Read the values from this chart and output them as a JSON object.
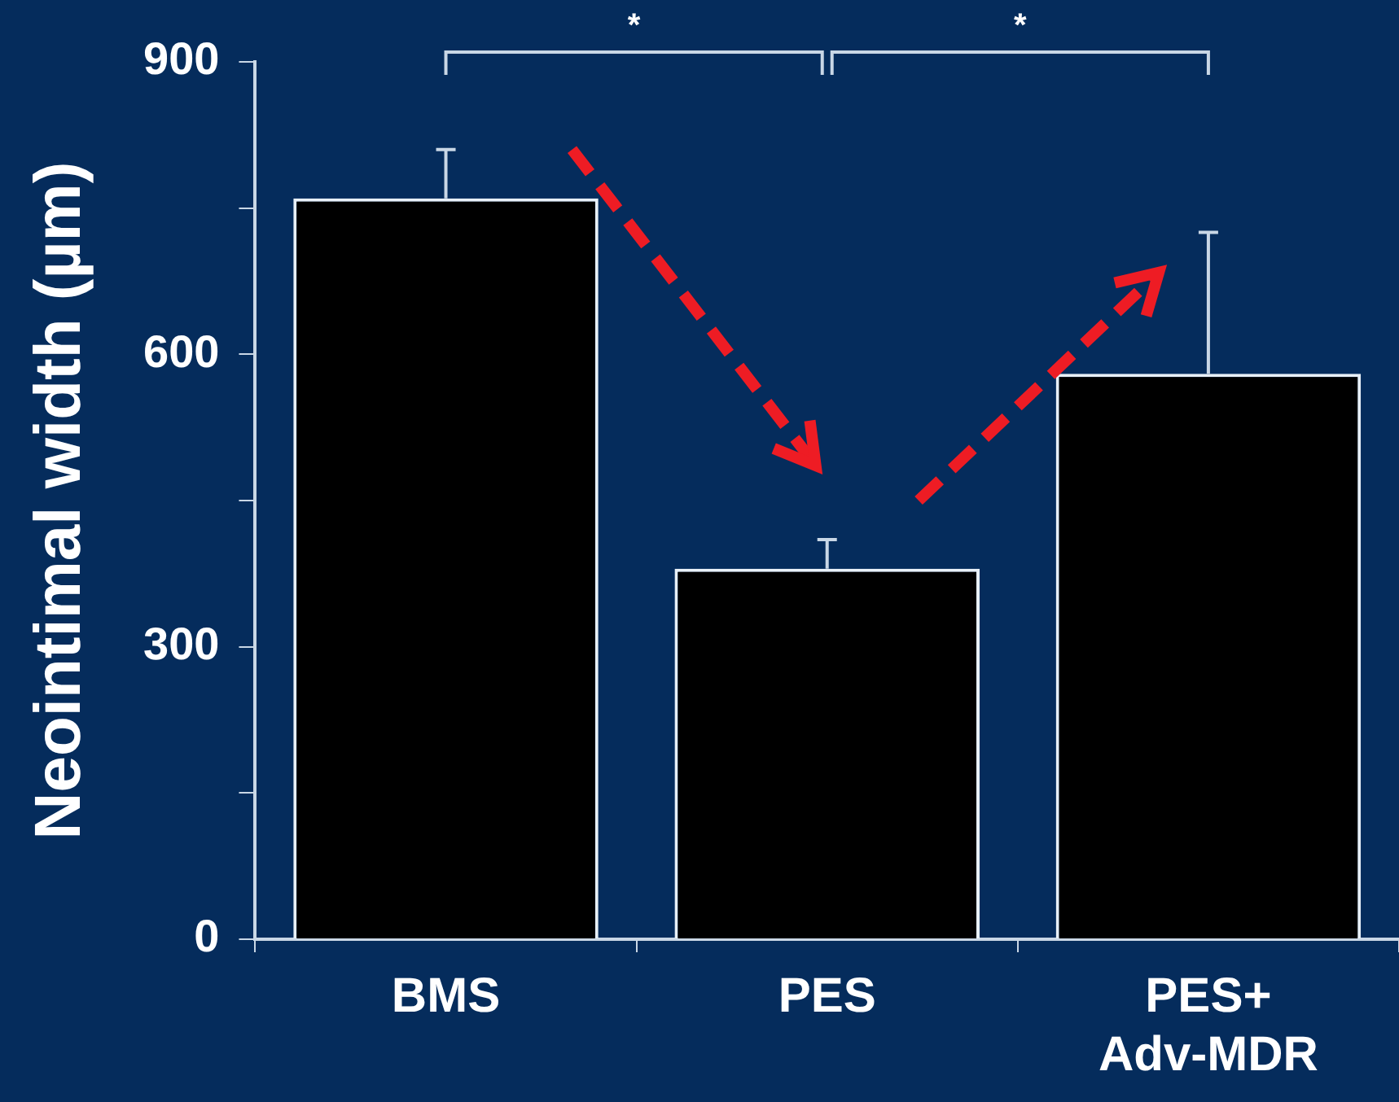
{
  "chart_data": {
    "type": "bar",
    "ylabel": "Neointimal width (µm)",
    "categories": [
      "BMS",
      "PES",
      "PES+\nAdv-MDR"
    ],
    "values": [
      760,
      380,
      580
    ],
    "errors": [
      [
        760,
        810
      ],
      [
        380,
        410
      ],
      [
        580,
        725
      ]
    ],
    "color": "#000000",
    "ylim": [
      0,
      900
    ],
    "yticks": [
      0,
      {
        "value": 150,
        "label": null
      },
      300,
      {
        "value": 450,
        "label": null
      },
      600,
      {
        "value": 750,
        "label": null
      },
      900
    ],
    "grid": false,
    "legend": false,
    "annotations": [
      "*",
      "*"
    ]
  }
}
